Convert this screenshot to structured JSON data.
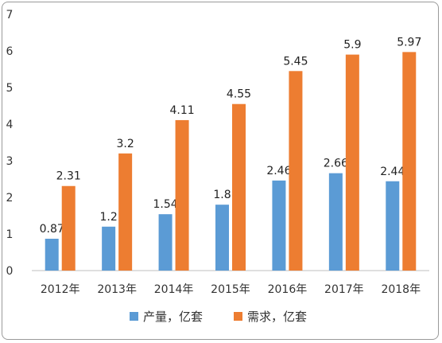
{
  "chart_data": {
    "type": "bar",
    "title": "",
    "xlabel": "",
    "ylabel": "",
    "categories": [
      "2012年",
      "2013年",
      "2014年",
      "2015年",
      "2016年",
      "2017年",
      "2018年"
    ],
    "ylim": [
      0,
      7
    ],
    "yticks": [
      "0",
      "1",
      "2",
      "3",
      "4",
      "5",
      "6",
      "7"
    ],
    "grid": false,
    "legend_position": "bottom",
    "series": [
      {
        "name": "产量，亿套",
        "color": "#5b9bd5",
        "values": [
          0.87,
          1.2,
          1.54,
          1.8,
          2.46,
          2.66,
          2.44
        ],
        "labels": [
          "0.87",
          "1.2",
          "1.54",
          "1.8",
          "2.46",
          "2.66",
          "2.44"
        ]
      },
      {
        "name": "需求，亿套",
        "color": "#ed7d31",
        "values": [
          2.31,
          3.2,
          4.11,
          4.55,
          5.45,
          5.9,
          5.97
        ],
        "labels": [
          "2.31",
          "3.2",
          "4.11",
          "4.55",
          "5.45",
          "5.9",
          "5.97"
        ]
      }
    ]
  }
}
